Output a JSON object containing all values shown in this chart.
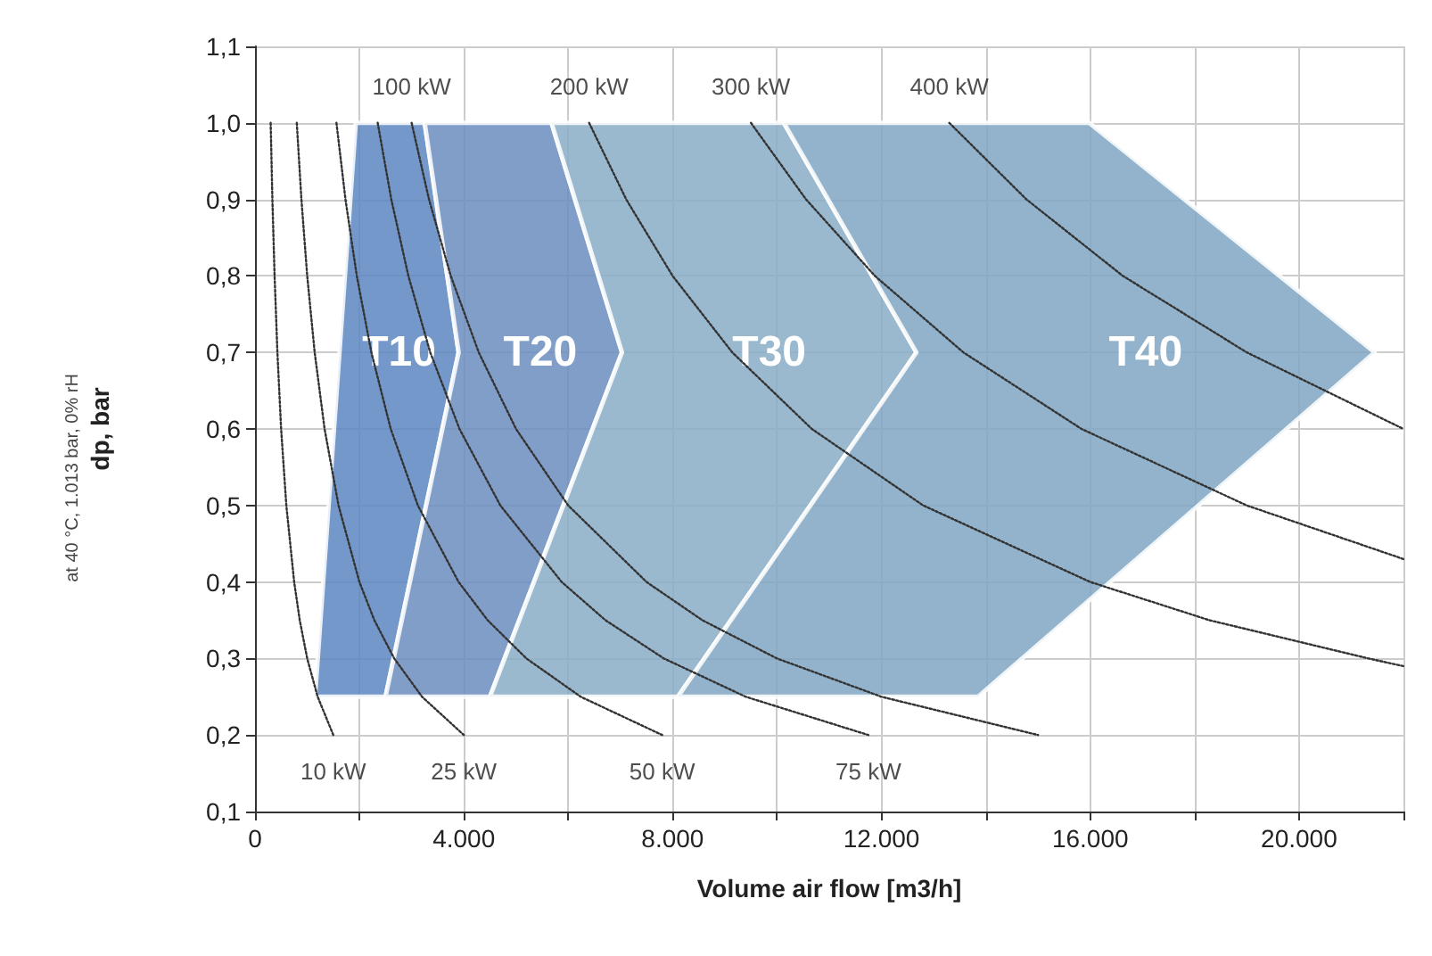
{
  "chart_data": {
    "type": "line",
    "xlabel": "Volume air flow [m3/h]",
    "ylabel": "dp, bar",
    "xlim": [
      0,
      22000
    ],
    "ylim": [
      0.1,
      1.1
    ],
    "xticks": [
      0,
      {
        "value": 2000,
        "label": null
      },
      {
        "value": 4000,
        "label": "4.000"
      },
      {
        "value": 6000,
        "label": null
      },
      {
        "value": 8000,
        "label": "8.000"
      },
      {
        "value": 10000,
        "label": null
      },
      {
        "value": 12000,
        "label": "12.000"
      },
      {
        "value": 14000,
        "label": null
      },
      {
        "value": 16000,
        "label": "16.000"
      },
      {
        "value": 18000,
        "label": null
      },
      {
        "value": 20000,
        "label": "20.000"
      },
      {
        "value": 22000,
        "label": null
      }
    ],
    "yticks": [
      {
        "value": 0.1,
        "label": "0,1"
      },
      {
        "value": 0.2,
        "label": "0,2"
      },
      {
        "value": 0.3,
        "label": "0,3"
      },
      {
        "value": 0.4,
        "label": "0,4"
      },
      {
        "value": 0.5,
        "label": "0,5"
      },
      {
        "value": 0.6,
        "label": "0,6"
      },
      {
        "value": 0.7,
        "label": "0,7"
      },
      {
        "value": 0.8,
        "label": "0,8"
      },
      {
        "value": 0.9,
        "label": "0,9"
      },
      {
        "value": 1.0,
        "label": "1,0"
      },
      {
        "value": 1.1,
        "label": "1,1"
      }
    ],
    "grid": true,
    "legend": false,
    "marker": "none",
    "series": [
      {
        "name": "T10",
        "type": "area",
        "color": "#5b86c0",
        "x": [
          1930,
          3250,
          3900,
          2500,
          1150
        ],
        "values": [
          1.0,
          1.0,
          0.7,
          0.25,
          0.25
        ]
      },
      {
        "name": "T20",
        "type": "area",
        "color": "#6b8dc0",
        "x": [
          3250,
          5680,
          7030,
          4500,
          2500,
          3900
        ],
        "values": [
          1.0,
          1.0,
          0.7,
          0.25,
          0.25,
          0.7
        ]
      },
      {
        "name": "T30",
        "type": "area",
        "color": "#88abc6",
        "x": [
          5680,
          10130,
          12670,
          8100,
          4500,
          7030
        ],
        "values": [
          1.0,
          1.0,
          0.7,
          0.25,
          0.25,
          0.7
        ]
      },
      {
        "name": "T40",
        "type": "area",
        "color": "#7fa6c2",
        "x": [
          10130,
          15980,
          21450,
          13850,
          8100,
          12670
        ],
        "values": [
          1.0,
          1.0,
          0.7,
          0.25,
          0.25,
          0.7
        ]
      },
      {
        "line_style": "dotted",
        "color": "#333333",
        "x": [
          300,
          333,
          375,
          429,
          500,
          600,
          750,
          857,
          1000,
          1200,
          1500
        ],
        "values": [
          1.0,
          0.9,
          0.8,
          0.7,
          0.6,
          0.5,
          0.4,
          0.35,
          0.3,
          0.25,
          0.2
        ]
      },
      {
        "line_style": "dotted",
        "color": "#333333",
        "x": [
          800,
          889,
          1000,
          1143,
          1333,
          1600,
          2000,
          2286,
          2667,
          3200,
          4000
        ],
        "values": [
          1.0,
          0.9,
          0.8,
          0.7,
          0.6,
          0.5,
          0.4,
          0.35,
          0.3,
          0.25,
          0.2
        ]
      },
      {
        "line_style": "dotted",
        "color": "#333333",
        "x": [
          1560,
          1733,
          1950,
          2229,
          2600,
          3120,
          3900,
          4457,
          5200,
          6240,
          7800
        ],
        "values": [
          1.0,
          0.9,
          0.8,
          0.7,
          0.6,
          0.5,
          0.4,
          0.35,
          0.3,
          0.25,
          0.2
        ]
      },
      {
        "line_style": "dotted",
        "color": "#333333",
        "x": [
          2350,
          2611,
          2938,
          3357,
          3917,
          4700,
          5875,
          6714,
          7833,
          9400,
          11750
        ],
        "values": [
          1.0,
          0.9,
          0.8,
          0.7,
          0.6,
          0.5,
          0.4,
          0.35,
          0.3,
          0.25,
          0.2
        ]
      },
      {
        "line_style": "dotted",
        "color": "#333333",
        "x": [
          3000,
          3333,
          3750,
          4286,
          5000,
          6000,
          7500,
          8571,
          10000,
          12000,
          15000
        ],
        "values": [
          1.0,
          0.9,
          0.8,
          0.7,
          0.6,
          0.5,
          0.4,
          0.35,
          0.3,
          0.25,
          0.2
        ]
      },
      {
        "line_style": "dotted",
        "color": "#333333",
        "x": [
          6400,
          7111,
          8000,
          9143,
          10667,
          12800,
          16000,
          18286,
          21333,
          22000
        ],
        "values": [
          1.0,
          0.9,
          0.8,
          0.7,
          0.6,
          0.5,
          0.4,
          0.35,
          0.3,
          0.29
        ]
      },
      {
        "line_style": "dotted",
        "color": "#333333",
        "x": [
          9500,
          10556,
          11875,
          13571,
          15833,
          19000,
          22000
        ],
        "values": [
          1.0,
          0.9,
          0.8,
          0.7,
          0.6,
          0.5,
          0.43
        ]
      },
      {
        "line_style": "dotted",
        "color": "#333333",
        "x": [
          13300,
          14778,
          16625,
          19000,
          22000
        ],
        "values": [
          1.0,
          0.9,
          0.8,
          0.7,
          0.6
        ]
      }
    ],
    "annotations": [
      "at 40 °C, 1.013 bar, 0% rH",
      {
        "text": "10 kW",
        "x": 1500,
        "y": 0.2
      },
      {
        "text": "25 kW",
        "x": 4000,
        "y": 0.2
      },
      {
        "text": "50 kW",
        "x": 7800,
        "y": 0.2
      },
      {
        "text": "75 kW",
        "x": 11750,
        "y": 0.2
      },
      {
        "text": "100 kW",
        "x": 3000,
        "y": 1.0
      },
      {
        "text": "200 kW",
        "x": 6400,
        "y": 1.0
      },
      {
        "text": "300 kW",
        "x": 9500,
        "y": 1.0
      },
      {
        "text": "400 kW",
        "x": 13300,
        "y": 1.0
      }
    ]
  }
}
